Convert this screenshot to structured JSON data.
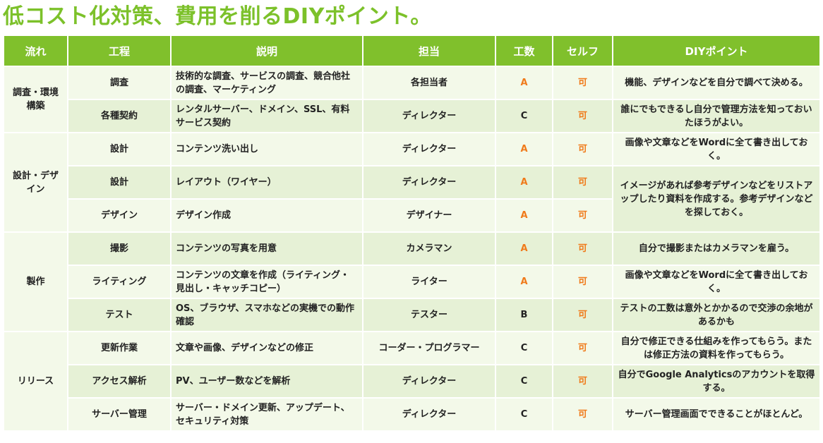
{
  "title": "低コスト化対策、費用を削るDIYポイント。",
  "headers": [
    "流れ",
    "工程",
    "説明",
    "担当",
    "工数",
    "セルフ",
    "DIYポイント"
  ],
  "groups": [
    {
      "flow": "調査・環境構築",
      "rows": [
        {
          "process": "調査",
          "desc": "技術的な調査、サービスの調査、競合他社の調査、マーケティング",
          "owner": "各担当者",
          "effort": "A",
          "self": "可",
          "tip": "機能、デザインなどを自分で調べて決める。"
        },
        {
          "process": "各種契約",
          "desc": "レンタルサーバー、ドメイン、SSL、有料サービス契約",
          "owner": "ディレクター",
          "effort": "C",
          "self": "可",
          "tip": "誰にでもできるし自分で管理方法を知っておいたほうがよい。"
        }
      ]
    },
    {
      "flow": "設計・デザイン",
      "rows": [
        {
          "process": "設計",
          "desc": "コンテンツ洗い出し",
          "owner": "ディレクター",
          "effort": "A",
          "self": "可",
          "tip": "画像や文章などをWordに全て書き出しておく。"
        },
        {
          "process": "設計",
          "desc": "レイアウト（ワイヤー）",
          "owner": "ディレクター",
          "effort": "A",
          "self": "可",
          "tip": "イメージがあれば参考デザインなどをリストアップしたり資料を作成する。参考デザインなどを探しておく。"
        },
        {
          "process": "デザイン",
          "desc": "デザイン作成",
          "owner": "デザイナー",
          "effort": "A",
          "self": "可"
        }
      ]
    },
    {
      "flow": "製作",
      "rows": [
        {
          "process": "撮影",
          "desc": "コンテンツの写真を用意",
          "owner": "カメラマン",
          "effort": "A",
          "self": "可",
          "tip": "自分で撮影またはカメラマンを雇う。"
        },
        {
          "process": "ライティング",
          "desc": "コンテンツの文章を作成（ライティング・見出し・キャッチコピー）",
          "owner": "ライター",
          "effort": "A",
          "self": "可",
          "tip": "画像や文章などをWordに全て書き出しておく。"
        },
        {
          "process": "テスト",
          "desc": "OS、ブラウザ、スマホなどの実機での動作確認",
          "owner": "テスター",
          "effort": "B",
          "self": "可",
          "tip": "テストの工数は意外とかかるので交渉の余地があるかも"
        }
      ]
    },
    {
      "flow": "リリース",
      "rows": [
        {
          "process": "更新作業",
          "desc": "文章や画像、デザインなどの修正",
          "owner": "コーダー・プログラマー",
          "effort": "C",
          "self": "可",
          "tip": "自分で修正できる仕組みを作ってもらう。または修正方法の資料を作ってもらう。"
        },
        {
          "process": "アクセス解析",
          "desc": "PV、ユーザー数などを解析",
          "owner": "ディレクター",
          "effort": "C",
          "self": "可",
          "tip": "自分でGoogle Analyticsのアカウントを取得する。"
        },
        {
          "process": "サーバー管理",
          "desc": "サーバー・ドメイン更新、アップデート、セキュリティ対策",
          "owner": "ディレクター",
          "effort": "C",
          "self": "可",
          "tip": "サーバー管理画面でできることがほとんど。"
        }
      ]
    }
  ],
  "colors": {
    "title": "#7cc12a",
    "header": "#80c02c",
    "accent": "#f07a1a",
    "band_light": "#f3f9e9",
    "band_dark": "#e6f1d6"
  }
}
